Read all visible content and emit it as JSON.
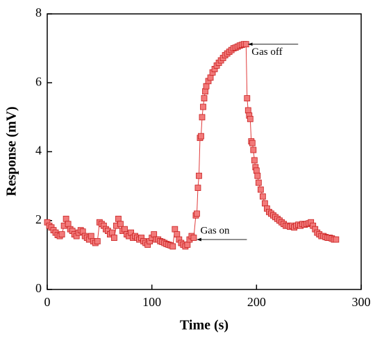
{
  "chart_data": {
    "type": "scatter",
    "xlabel": "Time (s)",
    "ylabel": "Response  (mV)",
    "xlim": [
      0,
      300
    ],
    "ylim": [
      0,
      8
    ],
    "xticks": [
      0,
      100,
      200,
      300
    ],
    "yticks": [
      0,
      2,
      4,
      6,
      8
    ],
    "annotations": [
      {
        "text": "Gas on",
        "x": 141,
        "y": 1.45
      },
      {
        "text": "Gas off",
        "x": 190,
        "y": 7.12
      }
    ],
    "series": [
      {
        "color": "#e03a3a",
        "x": [
          0,
          2,
          4,
          6,
          8,
          10,
          12,
          14,
          16,
          18,
          20,
          22,
          24,
          26,
          28,
          30,
          32,
          34,
          36,
          38,
          40,
          42,
          44,
          46,
          48,
          50,
          52,
          54,
          56,
          58,
          60,
          62,
          64,
          66,
          68,
          70,
          72,
          74,
          76,
          78,
          80,
          82,
          84,
          86,
          88,
          90,
          92,
          94,
          96,
          98,
          100,
          102,
          104,
          106,
          108,
          110,
          112,
          114,
          116,
          118,
          120,
          122,
          124,
          126,
          128,
          130,
          132,
          134,
          136,
          138,
          140,
          142,
          143,
          144,
          145,
          146,
          147,
          148,
          149,
          150,
          151,
          152,
          154,
          156,
          158,
          160,
          162,
          164,
          166,
          168,
          170,
          172,
          174,
          176,
          178,
          180,
          182,
          184,
          186,
          188,
          190,
          191,
          192,
          193,
          194,
          195,
          196,
          197,
          198,
          199,
          200,
          201,
          202,
          204,
          206,
          208,
          210,
          212,
          214,
          216,
          218,
          220,
          222,
          224,
          226,
          228,
          230,
          232,
          234,
          236,
          238,
          240,
          242,
          244,
          246,
          248,
          250,
          252,
          254,
          256,
          258,
          260,
          262,
          264,
          266,
          268,
          270,
          272,
          274,
          276
        ],
        "values": [
          1.95,
          1.85,
          1.8,
          1.72,
          1.65,
          1.58,
          1.55,
          1.6,
          1.85,
          2.05,
          1.9,
          1.75,
          1.7,
          1.6,
          1.55,
          1.65,
          1.72,
          1.68,
          1.55,
          1.5,
          1.45,
          1.55,
          1.4,
          1.35,
          1.4,
          1.95,
          1.9,
          1.85,
          1.75,
          1.7,
          1.6,
          1.65,
          1.5,
          1.85,
          2.05,
          1.9,
          1.7,
          1.75,
          1.6,
          1.55,
          1.65,
          1.5,
          1.55,
          1.5,
          1.45,
          1.5,
          1.4,
          1.35,
          1.3,
          1.4,
          1.5,
          1.6,
          1.45,
          1.45,
          1.4,
          1.38,
          1.35,
          1.32,
          1.3,
          1.28,
          1.25,
          1.75,
          1.6,
          1.45,
          1.35,
          1.3,
          1.25,
          1.3,
          1.45,
          1.55,
          1.5,
          2.15,
          2.2,
          2.95,
          3.3,
          4.4,
          4.45,
          5.0,
          5.3,
          5.55,
          5.75,
          5.9,
          6.05,
          6.15,
          6.3,
          6.4,
          6.5,
          6.58,
          6.65,
          6.72,
          6.8,
          6.85,
          6.9,
          6.95,
          7.0,
          7.02,
          7.05,
          7.08,
          7.1,
          7.12,
          7.12,
          5.55,
          5.2,
          5.05,
          4.95,
          4.3,
          4.25,
          4.05,
          3.75,
          3.55,
          3.45,
          3.3,
          3.1,
          2.9,
          2.7,
          2.5,
          2.35,
          2.25,
          2.2,
          2.15,
          2.1,
          2.05,
          2.0,
          1.95,
          1.9,
          1.85,
          1.85,
          1.82,
          1.85,
          1.8,
          1.85,
          1.88,
          1.85,
          1.9,
          1.88,
          1.9,
          1.92,
          1.95,
          1.85,
          1.75,
          1.65,
          1.6,
          1.55,
          1.55,
          1.52,
          1.5,
          1.5,
          1.48,
          1.45,
          1.45
        ]
      }
    ]
  }
}
